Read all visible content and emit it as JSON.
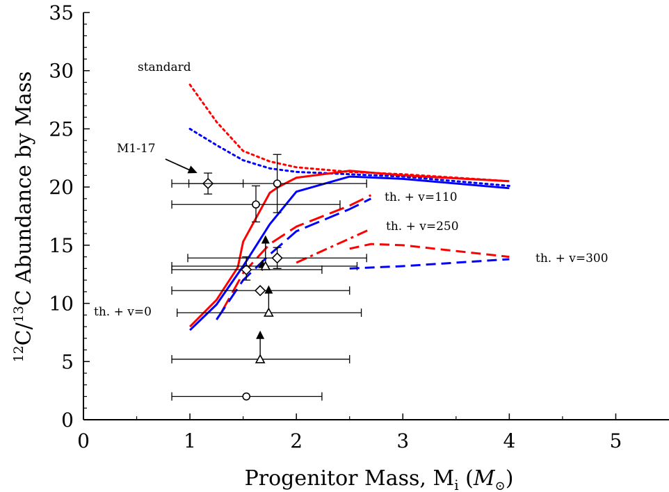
{
  "chart_data": {
    "type": "line",
    "xlabel_prefix": "Progenitor Mass, M",
    "xlabel_sub": "i",
    "xlabel_unit_open": " (",
    "xlabel_unit": "M",
    "xlabel_unit_sub": "⊙",
    "xlabel_unit_close": ")",
    "ylabel_pre": "12",
    "ylabel_mid": "C/",
    "ylabel_sup2": "13",
    "ylabel_post": "C Abundance by Mass",
    "xlim": [
      0,
      5.5
    ],
    "ylim": [
      0,
      35
    ],
    "xticks": [
      0,
      1,
      2,
      3,
      4,
      5
    ],
    "yticks": [
      0,
      5,
      10,
      15,
      20,
      25,
      30,
      35
    ],
    "colors": {
      "red": "#ff0000",
      "blue": "#0000ff",
      "black": "#000000"
    },
    "series": [
      {
        "name": "standard",
        "color": "#ff0000",
        "style": "dotted",
        "x": [
          1.0,
          1.25,
          1.5,
          1.75,
          2.0,
          2.5,
          3.0,
          4.0
        ],
        "y": [
          28.8,
          25.6,
          23.1,
          22.2,
          21.7,
          21.3,
          21.1,
          20.5
        ]
      },
      {
        "name": "standard",
        "color": "#0000ff",
        "style": "dotted",
        "x": [
          1.0,
          1.25,
          1.5,
          1.75,
          2.0,
          2.5,
          3.0,
          4.0
        ],
        "y": [
          25.0,
          23.6,
          22.3,
          21.6,
          21.3,
          21.1,
          20.9,
          20.1
        ]
      },
      {
        "name": "th. + v=0",
        "color": "#ff0000",
        "style": "solid",
        "x": [
          1.0,
          1.25,
          1.45,
          1.5,
          1.75,
          1.83,
          2.0,
          2.5,
          3.0,
          4.0
        ],
        "y": [
          8.0,
          10.3,
          13.1,
          15.3,
          19.5,
          20.0,
          20.8,
          21.4,
          21.0,
          20.5
        ]
      },
      {
        "name": "th. + v=0",
        "color": "#0000ff",
        "style": "solid",
        "x": [
          1.0,
          1.25,
          1.5,
          1.75,
          2.0,
          2.5,
          3.0,
          4.0
        ],
        "y": [
          7.7,
          9.9,
          13.2,
          16.8,
          19.6,
          20.9,
          20.7,
          19.9
        ]
      },
      {
        "name": "th. + v=110",
        "color": "#ff0000",
        "style": "longdash",
        "x": [
          1.3,
          1.5,
          1.75,
          2.0,
          2.5,
          2.7
        ],
        "y": [
          9.3,
          12.6,
          15.1,
          16.6,
          18.4,
          19.3
        ]
      },
      {
        "name": "th. + v=110",
        "color": "#0000ff",
        "style": "longdash",
        "x": [
          1.25,
          1.5,
          1.75,
          2.0,
          2.5,
          2.7
        ],
        "y": [
          8.6,
          12.0,
          14.2,
          16.2,
          18.1,
          19.0
        ]
      },
      {
        "name": "th. + v=250",
        "color": "#ff0000",
        "style": "dashdot",
        "x": [
          2.0,
          2.7
        ],
        "y": [
          13.5,
          16.4
        ]
      },
      {
        "name": "th. + v=300",
        "color": "#ff0000",
        "style": "dashed",
        "x": [
          2.5,
          2.7,
          3.0,
          4.0
        ],
        "y": [
          14.7,
          15.1,
          15.0,
          14.0
        ]
      },
      {
        "name": "th. + v=300",
        "color": "#0000ff",
        "style": "dashed",
        "x": [
          2.5,
          3.0,
          4.0
        ],
        "y": [
          13.0,
          13.2,
          13.8
        ]
      }
    ],
    "observations": [
      {
        "marker": "diamond",
        "x": 1.17,
        "y": 20.3,
        "xerr": [
          0.99,
          1.5
        ],
        "yerr": [
          19.4,
          21.2
        ]
      },
      {
        "marker": "diamond",
        "x": 1.53,
        "y": 12.9,
        "xerr": [
          0.83,
          2.24
        ],
        "yerr": [
          12.0,
          14.0
        ]
      },
      {
        "marker": "diamond",
        "x": 1.66,
        "y": 11.1,
        "xerr": [
          0.83,
          2.5
        ],
        "yerr": null
      },
      {
        "marker": "diamond",
        "x": 1.82,
        "y": 13.9,
        "xerr": [
          0.98,
          2.66
        ],
        "yerr": [
          13.0,
          14.8
        ]
      },
      {
        "marker": "circle",
        "x": 1.62,
        "y": 18.5,
        "xerr": [
          0.83,
          2.41
        ],
        "yerr": [
          17.0,
          20.1
        ]
      },
      {
        "marker": "circle",
        "x": 1.82,
        "y": 20.3,
        "xerr": [
          0.83,
          2.66
        ],
        "yerr": [
          17.8,
          22.8
        ]
      },
      {
        "marker": "circle",
        "x": 1.53,
        "y": 2.0,
        "xerr": [
          0.83,
          2.24
        ],
        "yerr": null
      },
      {
        "marker": "triangle-open",
        "x": 1.66,
        "y": 5.2,
        "xerr": [
          0.83,
          2.5
        ],
        "yerr": null
      },
      {
        "marker": "triangle-open",
        "x": 1.74,
        "y": 9.2,
        "xerr": [
          0.88,
          2.61
        ],
        "yerr": null
      },
      {
        "marker": "triangle-open",
        "x": 1.71,
        "y": 13.2,
        "xerr": [
          0.83,
          2.57
        ],
        "yerr": null
      }
    ],
    "lower_limits": [
      {
        "x": 1.66,
        "y_from": 5.2,
        "y_to": 7.3
      },
      {
        "x": 1.74,
        "y_from": 9.2,
        "y_to": 11.2
      },
      {
        "x": 1.71,
        "y_from": 13.2,
        "y_to": 15.5
      },
      {
        "x": 1.68,
        "y_from": 12.8,
        "y_to": 13.4
      }
    ],
    "annotations": [
      {
        "id": "standard",
        "text": "standard"
      },
      {
        "id": "m117",
        "text": "M1-17"
      },
      {
        "id": "v110",
        "text": "th. + v=110"
      },
      {
        "id": "v250",
        "text": "th. + v=250"
      },
      {
        "id": "v300",
        "text": "th. + v=300"
      },
      {
        "id": "v0",
        "text": "th. + v=0"
      }
    ],
    "arrow": {
      "from": [
        0.77,
        22.4
      ],
      "to": [
        1.07,
        21.2
      ]
    }
  }
}
